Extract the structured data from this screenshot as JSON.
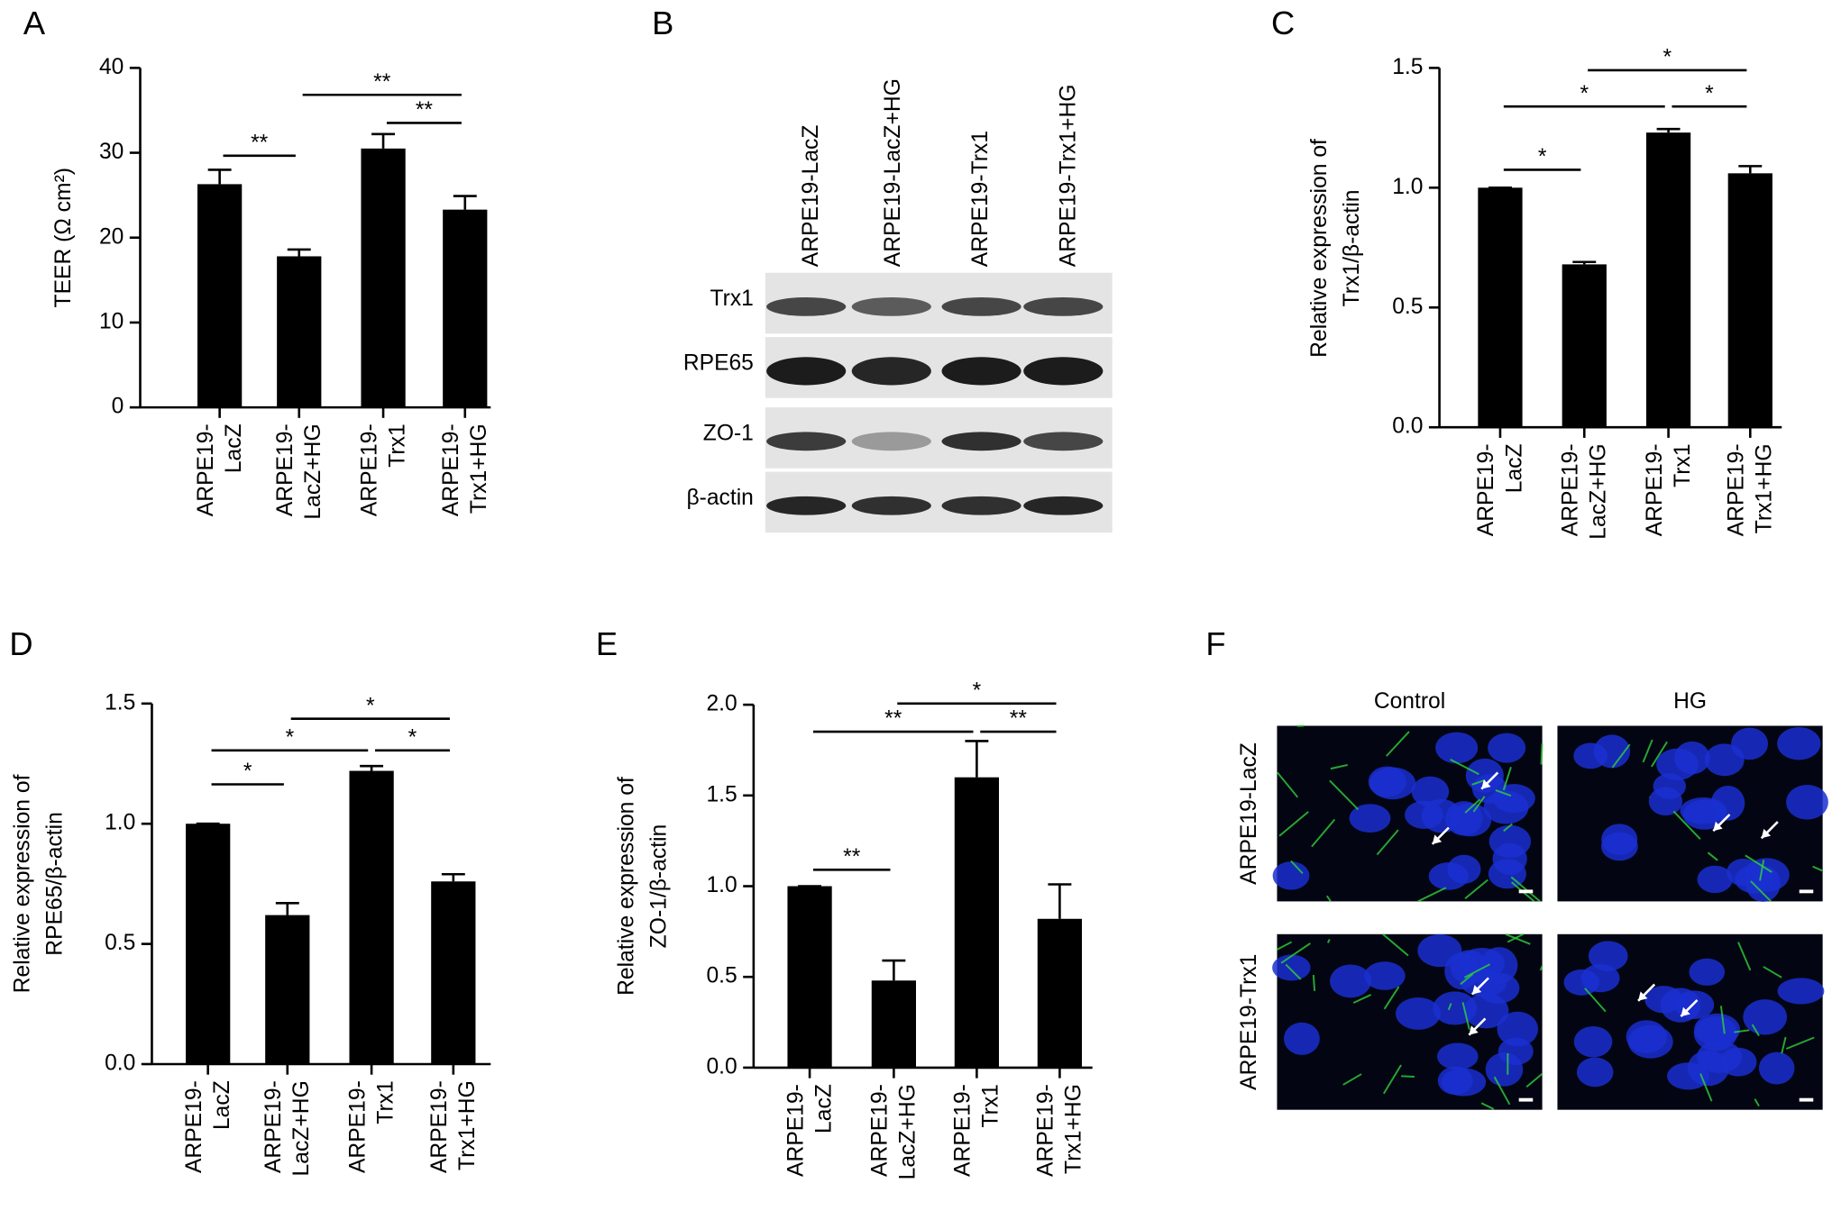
{
  "panel_labels": [
    "A",
    "B",
    "C",
    "D",
    "E",
    "F"
  ],
  "chart_data": [
    {
      "type": "bar",
      "y_label": [
        "TEER (Ω cm²)"
      ],
      "color": "#000000",
      "categories": [
        [
          "ARPE19-",
          "LacZ"
        ],
        [
          "ARPE19-",
          "LacZ+HG"
        ],
        [
          "ARPE19-",
          "Trx1"
        ],
        [
          "ARPE19-",
          "Trx1+HG"
        ]
      ],
      "values": [
        26.3,
        17.8,
        30.5,
        23.3
      ],
      "errors": [
        1.7,
        0.8,
        1.7,
        1.6
      ],
      "ylim": [
        0,
        40
      ],
      "yticks": [
        0,
        10,
        20,
        30,
        40
      ],
      "annotations": [
        "**",
        "**",
        "**"
      ]
    },
    {
      "type": "bar",
      "y_label": [
        "Relative expression of",
        "Trx1/β-actin"
      ],
      "color": "#000000",
      "categories": [
        [
          "ARPE19-",
          "LacZ"
        ],
        [
          "ARPE19-",
          "LacZ+HG"
        ],
        [
          "ARPE19-",
          "Trx1"
        ],
        [
          "ARPE19-",
          "Trx1+HG"
        ]
      ],
      "values": [
        1.0,
        0.68,
        1.23,
        1.06
      ],
      "errors": [
        0,
        0.01,
        0.015,
        0.03
      ],
      "ylim": [
        0,
        1.5
      ],
      "yticks": [
        {
          "value": 0,
          "label": "0.0"
        },
        0.5,
        {
          "value": 1,
          "label": "1.0"
        },
        1.5
      ],
      "annotations": [
        "*",
        "*",
        "*",
        "*"
      ]
    },
    {
      "type": "bar",
      "y_label": [
        "Relative expression of",
        "RPE65/β-actin"
      ],
      "color": "#000000",
      "categories": [
        [
          "ARPE19-",
          "LacZ"
        ],
        [
          "ARPE19-",
          "LacZ+HG"
        ],
        [
          "ARPE19-",
          "Trx1"
        ],
        [
          "ARPE19-",
          "Trx1+HG"
        ]
      ],
      "values": [
        1.0,
        0.62,
        1.22,
        0.76
      ],
      "errors": [
        0,
        0.05,
        0.02,
        0.03
      ],
      "ylim": [
        0,
        1.5
      ],
      "yticks": [
        {
          "value": 0,
          "label": "0.0"
        },
        0.5,
        {
          "value": 1,
          "label": "1.0"
        },
        1.5
      ],
      "annotations": [
        "*",
        "*",
        "*",
        "*"
      ]
    },
    {
      "type": "bar",
      "y_label": [
        "Relative expression of",
        "ZO-1/β-actin"
      ],
      "color": "#000000",
      "categories": [
        [
          "ARPE19-",
          "LacZ"
        ],
        [
          "ARPE19-",
          "LacZ+HG"
        ],
        [
          "ARPE19-",
          "Trx1"
        ],
        [
          "ARPE19-",
          "Trx1+HG"
        ]
      ],
      "values": [
        1.0,
        0.48,
        1.6,
        0.82
      ],
      "errors": [
        0,
        0.11,
        0.2,
        0.19
      ],
      "ylim": [
        0,
        2
      ],
      "yticks": [
        {
          "value": 0,
          "label": "0.0"
        },
        0.5,
        {
          "value": 1,
          "label": "1.0"
        },
        1.5,
        {
          "value": 2,
          "label": "2.0"
        }
      ],
      "annotations": [
        "**",
        "**",
        "*",
        "**"
      ]
    }
  ],
  "blot": {
    "lanes": [
      "ARPE19-LacZ",
      "ARPE19-LacZ+HG",
      "ARPE19-Trx1",
      "ARPE19-Trx1+HG"
    ],
    "rows": [
      "Trx1",
      "RPE65",
      "ZO-1",
      "β-actin"
    ]
  },
  "images": {
    "columns": [
      "Control",
      "HG"
    ],
    "rows": [
      "ARPE19-LacZ",
      "ARPE19-Trx1"
    ]
  }
}
